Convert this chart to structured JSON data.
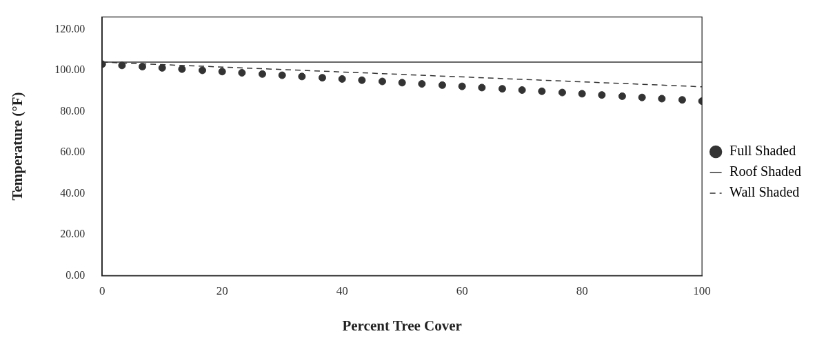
{
  "chart_data": {
    "type": "line",
    "xlabel": "Percent Tree Cover",
    "ylabel": "Temperature (°F)",
    "xlim": [
      0,
      100
    ],
    "xticks": [
      0,
      20,
      40,
      60,
      80,
      100
    ],
    "ylim": [
      0,
      126
    ],
    "yticks": [
      {
        "value": 0,
        "label": "0.00"
      },
      {
        "value": 20,
        "label": "20.00"
      },
      {
        "value": 40,
        "label": "40.00"
      },
      {
        "value": 60,
        "label": "60.00"
      },
      {
        "value": 80,
        "label": "80.00"
      },
      {
        "value": 100,
        "label": "100.00"
      },
      {
        "value": 120,
        "label": "120.00"
      }
    ],
    "grid": false,
    "legend": "right",
    "series": [
      {
        "name": "Full Shaded",
        "type": "scatter",
        "marker": "circle",
        "color": "#333333",
        "x": [
          0,
          3.3,
          6.7,
          10,
          13.3,
          16.7,
          20,
          23.3,
          26.7,
          30,
          33.3,
          36.7,
          40,
          43.3,
          46.7,
          50,
          53.3,
          56.7,
          60,
          63.3,
          66.7,
          70,
          73.3,
          76.7,
          80,
          83.3,
          86.7,
          90,
          93.3,
          96.7,
          100
        ],
        "values": [
          103,
          102.4,
          101.8,
          101.2,
          100.6,
          100,
          99.4,
          98.8,
          98.2,
          97.6,
          97,
          96.4,
          95.8,
          95.2,
          94.6,
          94,
          93.4,
          92.8,
          92.2,
          91.6,
          91,
          90.4,
          89.8,
          89.2,
          88.6,
          88,
          87.4,
          86.8,
          86.2,
          85.6,
          85
        ]
      },
      {
        "name": "Roof Shaded",
        "type": "line",
        "line_style": "solid",
        "color": "#333333",
        "x": [
          0,
          100
        ],
        "values": [
          104,
          104
        ]
      },
      {
        "name": "Wall Shaded",
        "type": "line",
        "line_style": "dashed",
        "color": "#333333",
        "x": [
          0,
          100
        ],
        "values": [
          104,
          92
        ]
      }
    ]
  }
}
